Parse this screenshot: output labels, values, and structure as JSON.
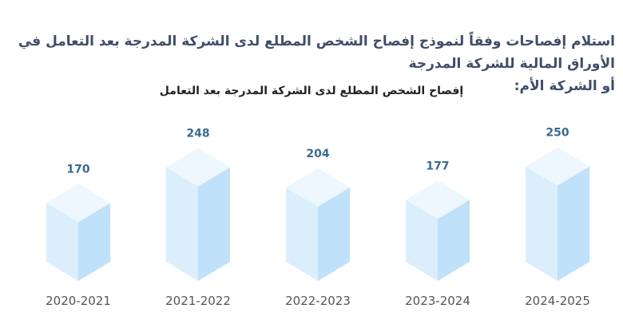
{
  "heading": {
    "line1": "استلام إفصاحات وفقاً لنموذج إفصاح الشخص المطلع لدى الشركة المدرجة بعد التعامل في الأوراق المالية للشركة المدرجة",
    "line2": "أو الشركة الأم:"
  },
  "colors": {
    "bar_front": "#dbeefc",
    "bar_side": "#bfe1f9",
    "bar_top": "#eef7fe",
    "value_text": "#3a6a92",
    "heading_text": "#3f4d6a"
  },
  "chart_data": {
    "type": "bar",
    "title": "إفصاح الشخص المطلع لدى الشركة المدرجة بعد التعامل",
    "categories": [
      "2020-2021",
      "2021-2022",
      "2022-2023",
      "2023-2024",
      "2024-2025"
    ],
    "values": [
      170,
      248,
      204,
      177,
      250
    ],
    "grid": false,
    "legend": "none"
  }
}
